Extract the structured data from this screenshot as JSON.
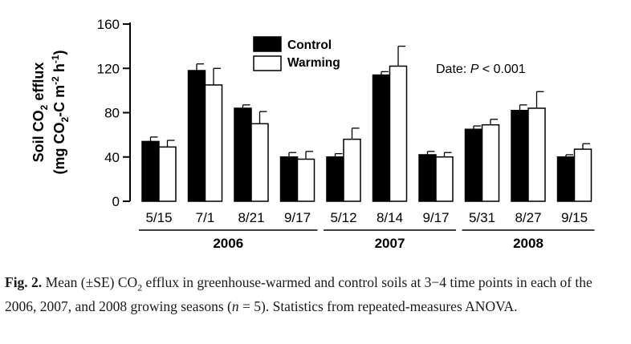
{
  "chart_data": {
    "type": "bar",
    "ylabel_line1": "Soil CO",
    "ylabel_line1_sub": "2",
    "ylabel_line1_tail": " efflux",
    "ylabel_line2": "(mg CO",
    "ylabel_line2_sub": "2",
    "ylabel_line2_mid": "-C m",
    "ylabel_line2_sup1": "-2",
    "ylabel_line2_mid2": " h",
    "ylabel_line2_sup2": "-1",
    "ylabel_line2_tail": ")",
    "ylim": [
      0,
      160
    ],
    "yticks": [
      0,
      40,
      80,
      120,
      160
    ],
    "categories": [
      "5/15",
      "7/1",
      "8/21",
      "9/17",
      "5/12",
      "8/14",
      "9/17",
      "5/31",
      "8/27",
      "9/15"
    ],
    "groups": [
      {
        "label": "2006",
        "start": 0,
        "end": 3
      },
      {
        "label": "2007",
        "start": 4,
        "end": 6
      },
      {
        "label": "2008",
        "start": 7,
        "end": 9
      }
    ],
    "series": [
      {
        "name": "Control",
        "color": "#000000",
        "values": [
          54,
          118,
          84,
          40,
          40,
          114,
          42,
          65,
          82,
          40
        ],
        "se": [
          4,
          6,
          3,
          4,
          3,
          3,
          3,
          3,
          5,
          2
        ]
      },
      {
        "name": "Warming",
        "color": "#ffffff",
        "values": [
          49,
          105,
          70,
          38,
          56,
          122,
          40,
          69,
          84,
          47
        ],
        "se": [
          6,
          15,
          11,
          7,
          10,
          18,
          4,
          5,
          15,
          5
        ]
      }
    ],
    "annotation": "Date: ",
    "annotation_p": "P",
    "annotation_tail": " < 0.001",
    "legend_position": "top-left",
    "grid": false
  },
  "caption": {
    "label": "Fig. 2.",
    "text_a": " Mean (±SE) CO",
    "text_sub": "2",
    "text_b": " efflux in greenhouse-warmed and control soils at 3−4 time points in each of the 2006, 2007, and 2008 growing seasons (",
    "text_n": "n",
    "text_c": " = 5). Statistics from repeated-measures ANOVA."
  }
}
